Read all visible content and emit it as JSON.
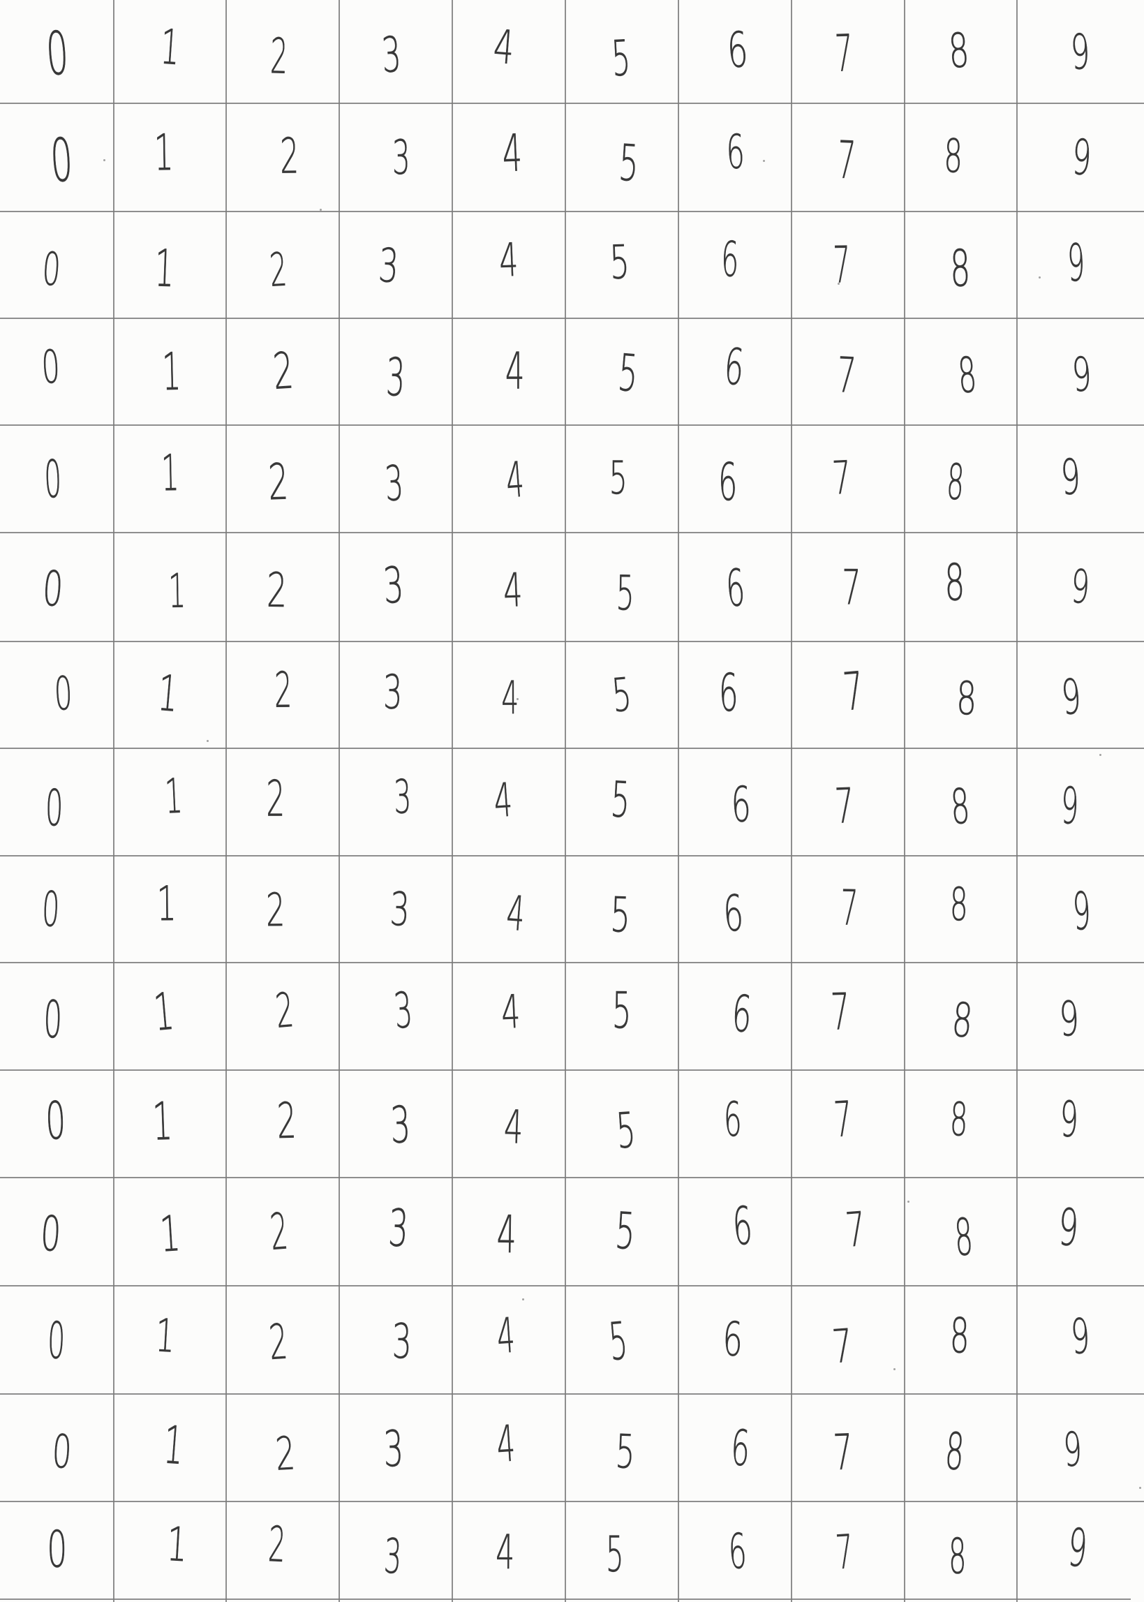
{
  "worksheet": {
    "rows": [
      [
        "0",
        "1",
        "2",
        "3",
        "4",
        "5",
        "6",
        "7",
        "8",
        "9"
      ],
      [
        "0",
        "1",
        "2",
        "3",
        "4",
        "5",
        "6",
        "7",
        "8",
        "9"
      ],
      [
        "0",
        "1",
        "2",
        "3",
        "4",
        "5",
        "6",
        "7",
        "8",
        "9"
      ],
      [
        "0",
        "1",
        "2",
        "3",
        "4",
        "5",
        "6",
        "7",
        "8",
        "9"
      ],
      [
        "0",
        "1",
        "2",
        "3",
        "4",
        "5",
        "6",
        "7",
        "8",
        "9"
      ],
      [
        "0",
        "1",
        "2",
        "3",
        "4",
        "5",
        "6",
        "7",
        "8",
        "9"
      ],
      [
        "0",
        "1",
        "2",
        "3",
        "4",
        "5",
        "6",
        "7",
        "8",
        "9"
      ],
      [
        "0",
        "1",
        "2",
        "3",
        "4",
        "5",
        "6",
        "7",
        "8",
        "9"
      ],
      [
        "0",
        "1",
        "2",
        "3",
        "4",
        "5",
        "6",
        "7",
        "8",
        "9"
      ],
      [
        "0",
        "1",
        "2",
        "3",
        "4",
        "5",
        "6",
        "7",
        "8",
        "9"
      ],
      [
        "0",
        "1",
        "2",
        "3",
        "4",
        "5",
        "6",
        "7",
        "8",
        "9"
      ],
      [
        "0",
        "1",
        "2",
        "3",
        "4",
        "5",
        "6",
        "7",
        "8",
        "9"
      ],
      [
        "0",
        "1",
        "2",
        "3",
        "4",
        "5",
        "6",
        "7",
        "8",
        "9"
      ],
      [
        "0",
        "1",
        "2",
        "3",
        "4",
        "5",
        "6",
        "7",
        "8",
        "9"
      ],
      [
        "0",
        "1",
        "2",
        "3",
        "4",
        "5",
        "6",
        "7",
        "8",
        "9"
      ]
    ]
  }
}
